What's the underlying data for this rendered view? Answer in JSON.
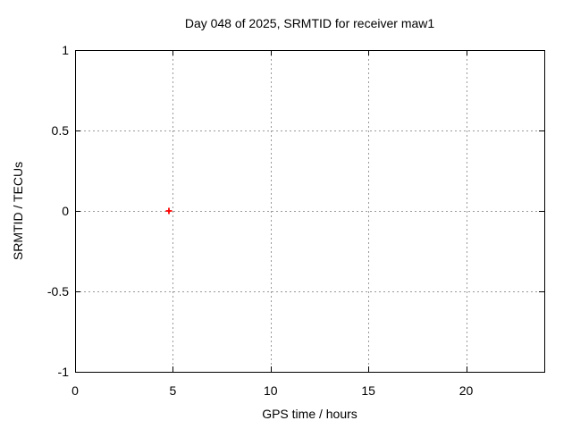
{
  "chart_data": {
    "type": "scatter",
    "title": "Day 048 of 2025, SRMTID for receiver maw1",
    "xlabel": "GPS time / hours",
    "ylabel": "SRMTID / TECUs",
    "xlim": [
      0,
      24
    ],
    "ylim": [
      -1,
      1
    ],
    "xticks": [
      0,
      5,
      10,
      15,
      20
    ],
    "yticks": [
      -1,
      -0.5,
      0,
      0.5,
      1
    ],
    "grid": true,
    "grid_style": "dotted",
    "legend": "none",
    "series": [
      {
        "name": "SRMTID",
        "marker": "plus",
        "color": "#ff0000",
        "points": [
          {
            "x": 4.8,
            "y": 0.0
          }
        ]
      }
    ],
    "colors": {
      "background": "#ffffff",
      "border": "#000000",
      "grid": "#999999",
      "text": "#000000"
    }
  }
}
